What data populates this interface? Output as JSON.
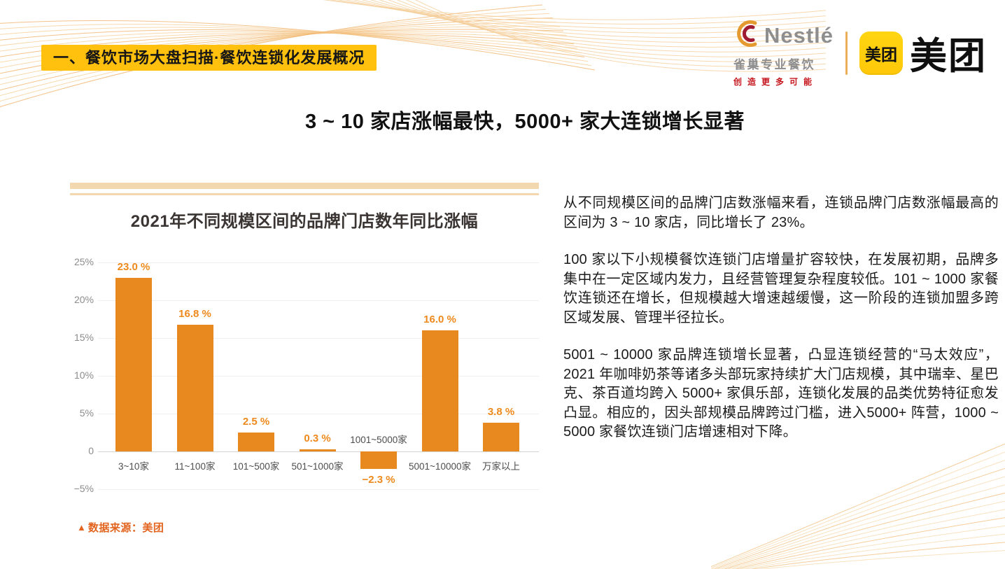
{
  "banner": {
    "label": "一、餐饮市场大盘扫描·餐饮连锁化发展概况"
  },
  "logos": {
    "nestle": {
      "wordmark": "Nestlé",
      "sub": "雀巢专业餐饮",
      "tagline": "创造更多可能"
    },
    "meituan": {
      "icon_text": "美团",
      "wordmark": "美团"
    }
  },
  "title": "3 ~ 10 家店涨幅最快，5000+ 家大连锁增长显著",
  "chart_data": {
    "type": "bar",
    "title": "2021年不同规模区间的品牌门店数年同比涨幅",
    "categories": [
      "3~10家",
      "11~100家",
      "101~500家",
      "501~1000家",
      "1001~5000家",
      "5001~10000家",
      "万家以上"
    ],
    "values": [
      23.0,
      16.8,
      2.5,
      0.3,
      -2.3,
      16.0,
      3.8
    ],
    "value_labels": [
      "23.0 %",
      "16.8 %",
      "2.5 %",
      "0.3 %",
      "−2.3 %",
      "16.0 %",
      "3.8 %"
    ],
    "y_ticks": [
      "25%",
      "20%",
      "15%",
      "10%",
      "5%",
      "0",
      "−5%"
    ],
    "y_tick_values": [
      25,
      20,
      15,
      10,
      5,
      0,
      -5
    ],
    "ylim": [
      -5,
      25
    ],
    "xlabel": "",
    "ylabel": "",
    "grid": true,
    "legend": "none",
    "bar_color": "#E8891F",
    "label_color": "#EE8A1D"
  },
  "source_note": {
    "marker": "▲",
    "text": "数据来源：美团"
  },
  "paragraphs": [
    "从不同规模区间的品牌门店数涨幅来看，连锁品牌门店数涨幅最高的区间为 3 ~ 10 家店，同比增长了 23%。",
    "100 家以下小规模餐饮连锁门店增量扩容较快，在发展初期，品牌多集中在一定区域内发力，且经营管理复杂程度较低。101 ~ 1000 家餐饮连锁还在增长，但规模越大增速越缓慢，这一阶段的连锁加盟多跨区域发展、管理半径拉长。",
    "5001 ~ 10000 家品牌连锁增长显著，凸显连锁经营的“马太效应”，2021 年咖啡奶茶等诸多头部玩家持续扩大门店规模，其中瑞幸、星巴克、茶百道均跨入 5000+ 家俱乐部，连锁化发展的品类优势特征愈发凸显。相应的，因头部规模品牌跨过门槛，进入5000+ 阵营，1000 ~ 5000 家餐饮连锁门店增速相对下降。"
  ],
  "colors": {
    "banner_bg": "#FFC10E",
    "bar": "#E8891F",
    "value_label": "#EE8A1D",
    "source_note": "#E2641E",
    "stripe": "#F3D7AE",
    "nestle_gray": "#8E8E8E",
    "nestle_red": "#C5161D",
    "meituan_yellow": "#FFCE10"
  }
}
